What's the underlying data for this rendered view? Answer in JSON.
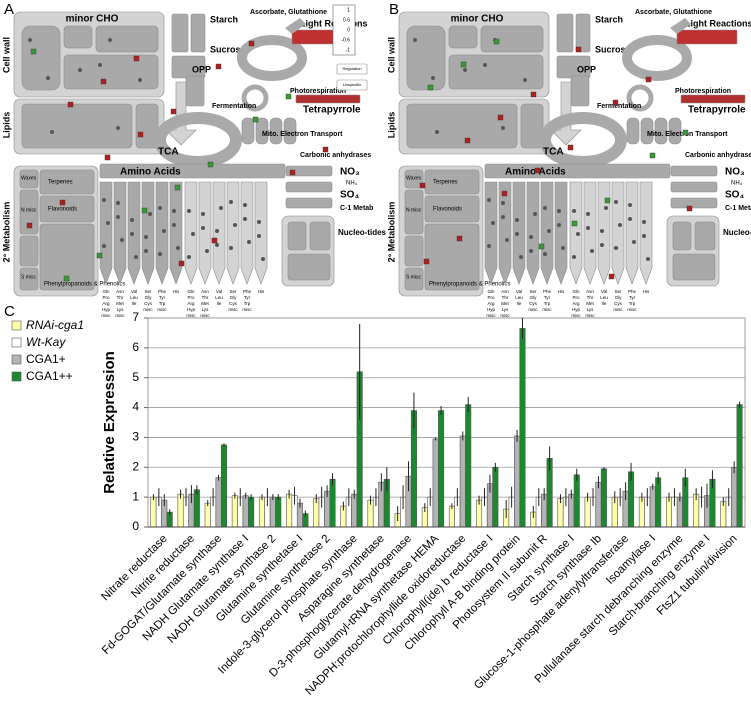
{
  "panel_labels": [
    "A",
    "B",
    "C"
  ],
  "map": {
    "labels": {
      "minor_cho": "minor CHO",
      "cell_wall": "Cell wall",
      "lipids": "Lipids",
      "starch": "Starch",
      "sucrose": "Sucrose",
      "opp": "OPP",
      "ascorbate": "Ascorbate, Glutathione",
      "light": "Light Reactions",
      "photoresp": "Photorespiration",
      "tetrapyrrole": "Tetrapyrrole",
      "fermentation": "Fermentation",
      "mito": "Mito. Electron Transport",
      "tca": "TCA",
      "carbonic": "Carbonic anhydrases",
      "amino": "Amino Acids",
      "no3": "NO₃",
      "nh4": "NH₄",
      "so4": "SO₄",
      "c1": "C-1 Metab",
      "nucleo": "Nucleo-tides",
      "secondary": "2° Metabolism",
      "waxes": "Waxes",
      "terpenes": "Terpenes",
      "flavonoids": "Flavonoids",
      "n_misc": "N misc",
      "s_misc": "S misc",
      "phenyl": "Phenylpropanoids & Phenolics",
      "regulation": "Regulation",
      "unspecific": "Unspecific"
    },
    "scale": [
      "1",
      "0.6",
      "0",
      "-0.6",
      "-1"
    ],
    "aa_columns": [
      [
        "Gln",
        "Pro",
        "Arg",
        "Hyp",
        "misc"
      ],
      [
        "Asn",
        "Thr",
        "Met",
        "Lys",
        "misc"
      ],
      [
        "Val",
        "Leu",
        "Ile"
      ],
      [
        "Ser",
        "Gly",
        "Cys",
        "misc"
      ],
      [
        "Phe",
        "Tyr",
        "Trp",
        "misc"
      ],
      [
        "His"
      ]
    ]
  },
  "chart_data": {
    "type": "bar",
    "y_label": "Relative Expression",
    "categories": [
      "Nitrate reductase",
      "Nitrite reductase",
      "Fd-GOGAT/Glutamate synthase",
      "NADH Glutamate synthase I",
      "NADH Glutamate synthase 2",
      "Glutamine synthetase I",
      "Glutamine synthetase 2",
      "Indole-3-glycerol phosphate synthase",
      "Asparagine synthetase",
      "D-3-phosphoglycerate dehydrogenase",
      "Glutamyl-tRNA synthetase HEMA",
      "NADPH:protochlorophyllide oxidoreductase",
      "Chlorophyll(ide) b reductase I",
      "Chlorophyll A-B binding protein",
      "Photosystem II subunit R",
      "Starch synthase I",
      "Starch synthase Ib",
      "Glucose-1-phosphate adenylyltransferase",
      "Isoamylase I",
      "Pullulanase starch debranching enzyme",
      "Starch-branching enzyme I",
      "FtsZ1 tubulin/division"
    ],
    "series": [
      {
        "name": "RNAi-cga1",
        "font_style": "italic",
        "color": "#ffffaa",
        "values": [
          1.0,
          1.1,
          0.8,
          1.05,
          1.0,
          1.1,
          0.95,
          0.7,
          0.9,
          0.45,
          0.65,
          0.7,
          0.9,
          0.6,
          0.5,
          0.95,
          1.0,
          1.0,
          1.0,
          1.0,
          1.1,
          0.85
        ],
        "errors": [
          0.1,
          0.15,
          0.1,
          0.1,
          0.1,
          0.15,
          0.15,
          0.15,
          0.15,
          0.25,
          0.15,
          0.1,
          0.15,
          0.3,
          0.2,
          0.15,
          0.15,
          0.2,
          0.15,
          0.15,
          0.2,
          0.15
        ]
      },
      {
        "name": "Wt-Kay",
        "font_style": "italic",
        "color": "#ffffff",
        "values": [
          1.0,
          1.0,
          1.0,
          1.0,
          1.0,
          1.05,
          1.0,
          1.0,
          1.0,
          1.0,
          1.0,
          1.0,
          1.0,
          1.0,
          1.0,
          1.0,
          1.0,
          1.0,
          1.0,
          1.0,
          1.0,
          1.0
        ],
        "errors": [
          0.3,
          0.3,
          0.3,
          0.3,
          0.3,
          0.3,
          0.35,
          0.3,
          0.3,
          0.4,
          0.3,
          0.3,
          0.3,
          0.35,
          0.3,
          0.3,
          0.3,
          0.3,
          0.3,
          0.3,
          0.35,
          0.3
        ]
      },
      {
        "name": "CGA1+",
        "font_style": "normal",
        "color": "#b3b3b3",
        "values": [
          0.9,
          1.1,
          1.65,
          1.05,
          1.0,
          0.8,
          1.2,
          1.1,
          1.5,
          1.7,
          2.95,
          3.05,
          1.45,
          3.05,
          1.1,
          1.1,
          1.5,
          1.2,
          1.35,
          1.0,
          1.05,
          2.0
        ],
        "errors": [
          0.2,
          0.3,
          0.1,
          0.1,
          0.1,
          0.15,
          0.2,
          0.15,
          0.3,
          0.5,
          0.05,
          0.15,
          0.3,
          0.2,
          0.2,
          0.15,
          0.2,
          0.3,
          0.1,
          0.15,
          0.4,
          0.2
        ]
      },
      {
        "name": "CGA1++",
        "font_style": "normal",
        "color": "#1b8a2e",
        "values": [
          0.5,
          1.25,
          2.75,
          1.0,
          1.0,
          0.45,
          1.6,
          5.2,
          1.6,
          3.9,
          3.9,
          4.1,
          2.0,
          6.65,
          2.3,
          1.75,
          1.95,
          1.85,
          1.65,
          1.65,
          1.6,
          4.1
        ],
        "errors": [
          0.1,
          0.15,
          0.05,
          0.1,
          0.1,
          0.1,
          0.2,
          1.6,
          0.4,
          0.6,
          0.15,
          0.25,
          0.15,
          0.35,
          0.4,
          0.2,
          0.05,
          0.3,
          0.2,
          0.3,
          0.3,
          0.1
        ]
      }
    ],
    "ylim": [
      0,
      7
    ],
    "yticks": [
      0,
      1,
      2,
      3,
      4,
      5,
      6,
      7
    ],
    "grid": true
  }
}
